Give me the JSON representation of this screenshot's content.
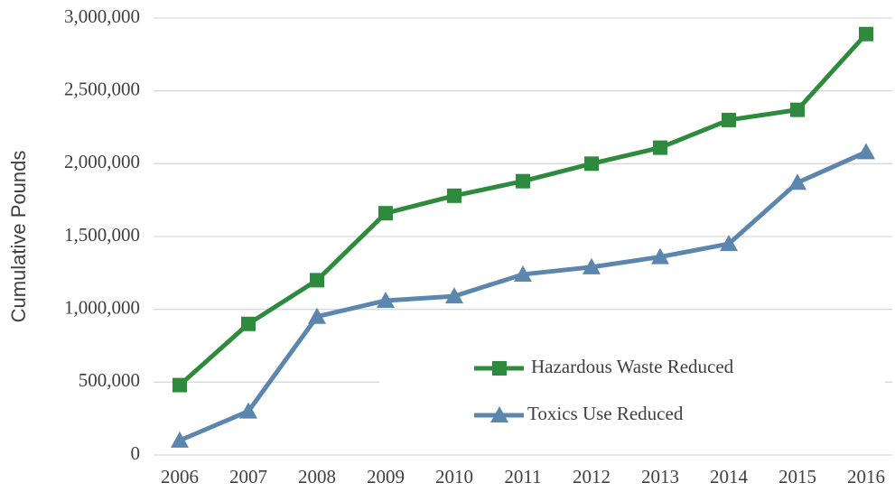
{
  "chart_data": {
    "type": "line",
    "y_label": "Cumulative Pounds",
    "categories": [
      "2006",
      "2007",
      "2008",
      "2009",
      "2010",
      "2011",
      "2012",
      "2013",
      "2014",
      "2015",
      "2016"
    ],
    "series": [
      {
        "name": "Hazardous Waste Reduced",
        "color": "#2e8b3e",
        "marker": "square",
        "values": [
          480000,
          900000,
          1200000,
          1660000,
          1780000,
          1880000,
          2000000,
          2110000,
          2300000,
          2370000,
          2890000
        ]
      },
      {
        "name": "Toxics Use Reduced",
        "color": "#5b87ae",
        "marker": "triangle",
        "values": [
          100000,
          300000,
          950000,
          1060000,
          1090000,
          1240000,
          1290000,
          1360000,
          1450000,
          1870000,
          2080000
        ]
      }
    ],
    "ylim": [
      0,
      3000000
    ],
    "yticks": [
      0,
      {
        "value": 500000,
        "label": "500,000"
      },
      {
        "value": 1000000,
        "label": "1,000,000"
      },
      {
        "value": 1500000,
        "label": "1,500,000"
      },
      {
        "value": 2000000,
        "label": "2,000,000"
      },
      {
        "value": 2500000,
        "label": "2,500,000"
      },
      {
        "value": 3000000,
        "label": "3,000,000"
      }
    ],
    "grid": true,
    "legend": "lower right"
  }
}
